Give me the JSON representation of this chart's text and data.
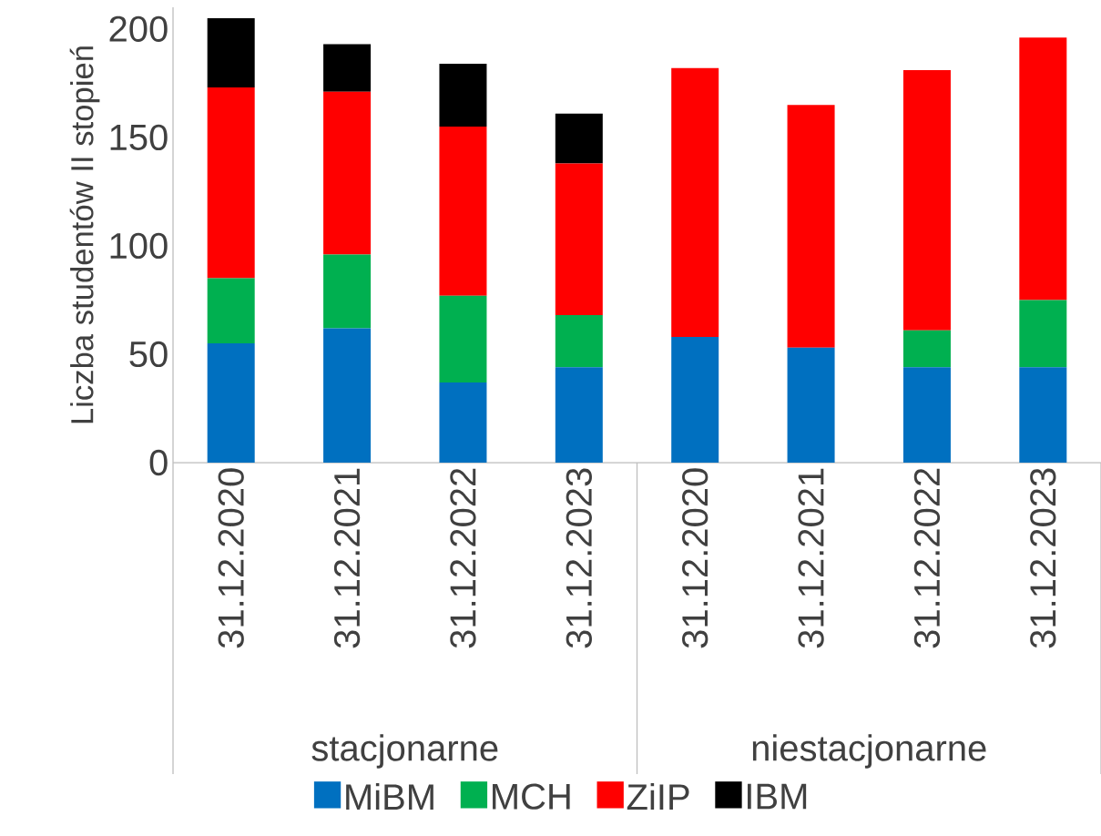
{
  "chart_data": {
    "type": "bar",
    "stacked": true,
    "ylabel": "Liczba studentów II stopień",
    "categories": [
      "31.12.2020",
      "31.12.2021",
      "31.12.2022",
      "31.12.2023",
      "31.12.2020",
      "31.12.2021",
      "31.12.2022",
      "31.12.2023"
    ],
    "series": [
      {
        "name": "MiBM",
        "color": "#0070c0",
        "values": [
          55,
          62,
          37,
          44,
          58,
          53,
          44,
          44
        ]
      },
      {
        "name": "MCH",
        "color": "#00b050",
        "values": [
          30,
          34,
          40,
          24,
          null,
          null,
          17,
          31
        ]
      },
      {
        "name": "ZiIP",
        "color": "#ff0000",
        "values": [
          88,
          75,
          78,
          70,
          124,
          112,
          120,
          121
        ]
      },
      {
        "name": "IBM",
        "color": "#000000",
        "values": [
          32,
          22,
          29,
          23,
          null,
          null,
          null,
          null
        ]
      }
    ],
    "annotations": [
      "stacjonarne",
      "niestacjonarne"
    ],
    "ylim": [
      0,
      210
    ],
    "yticks": [
      0,
      50,
      100,
      150,
      200
    ],
    "grid": false,
    "legend": "bottom"
  }
}
